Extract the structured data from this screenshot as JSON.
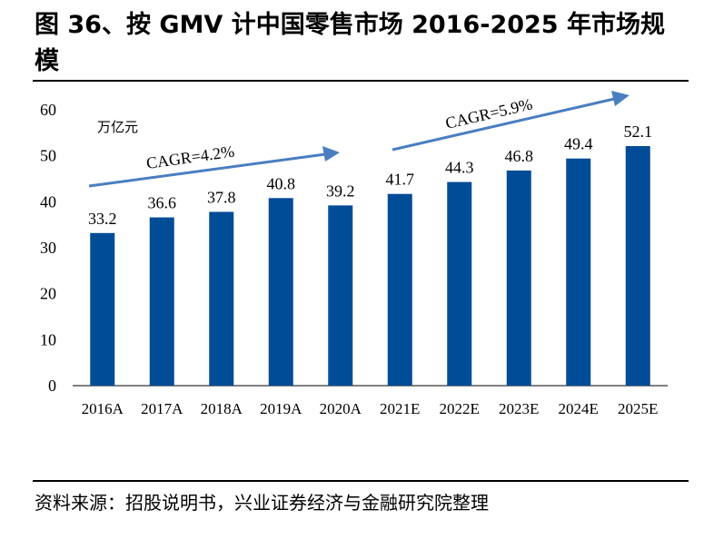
{
  "title": "图 36、按 GMV 计中国零售市场 2016-2025 年市场规模",
  "source": "资料来源：招股说明书，兴业证券经济与金融研究院整理",
  "chart_data": {
    "type": "bar",
    "unit_label": "万亿元",
    "categories": [
      "2016A",
      "2017A",
      "2018A",
      "2019A",
      "2020A",
      "2021E",
      "2022E",
      "2023E",
      "2024E",
      "2025E"
    ],
    "values": [
      33.2,
      36.6,
      37.8,
      40.8,
      39.2,
      41.7,
      44.3,
      46.8,
      49.4,
      52.1
    ],
    "ylim": [
      0,
      60
    ],
    "yticks": [
      0,
      10,
      20,
      30,
      40,
      50,
      60
    ],
    "grid": false,
    "bar_color": "#004C97",
    "arrow_color": "#4A7EC0",
    "annotations": [
      "CAGR=4.2%",
      "CAGR=5.9%"
    ]
  }
}
